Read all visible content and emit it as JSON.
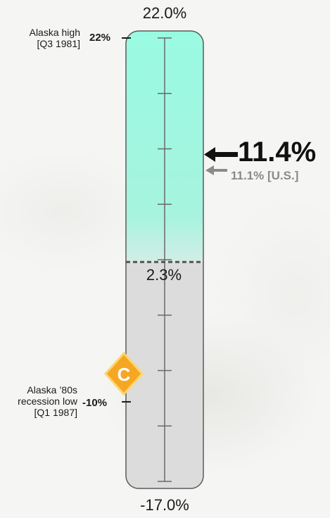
{
  "chart_data": {
    "type": "gauge",
    "max": 22.0,
    "min": -17.0,
    "midpoint": 2.3,
    "max_label": "22.0%",
    "min_label": "-17.0%",
    "midpoint_label": "2.3%",
    "markers": [
      {
        "value": 22,
        "label": "22%",
        "description": "Alaska high [Q3 1981]"
      },
      {
        "value": -10,
        "label": "-10%",
        "description": "Alaska ’80s recession low [Q1 1987]"
      }
    ],
    "alaska_value": 11.4,
    "alaska_label": "11.4%",
    "us_value": 11.1,
    "us_label": "11.1% [U.S.]",
    "grade": "C",
    "colors": {
      "upper_fill": "#99fae2",
      "lower_fill": "#dcdcdc",
      "grade_badge": "#f5a623",
      "alaska_arrow": "#111111",
      "us_arrow": "#8a8a8a"
    }
  }
}
